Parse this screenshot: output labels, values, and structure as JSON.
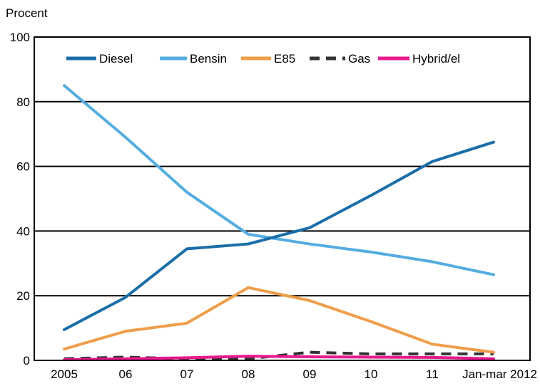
{
  "chart_data": {
    "type": "line",
    "y_unit_label": "Procent",
    "categories": [
      "2005",
      "06",
      "07",
      "08",
      "09",
      "10",
      "11",
      "Jan-mar 2012"
    ],
    "ylim": [
      0,
      100
    ],
    "y_ticks": [
      0,
      20,
      40,
      60,
      80,
      100
    ],
    "grid": true,
    "legend_position": "top",
    "series": [
      {
        "name": "Diesel",
        "color": "#1a6ea8",
        "dash": "solid",
        "values": [
          9.5,
          19.5,
          34.5,
          36,
          41,
          51,
          61.5,
          67.5
        ]
      },
      {
        "name": "Bensin",
        "color": "#55ade0",
        "dash": "solid",
        "values": [
          85,
          69,
          52,
          39,
          36,
          33.5,
          30.5,
          26.5
        ]
      },
      {
        "name": "E85",
        "color": "#ef9d4a",
        "dash": "solid",
        "values": [
          3.5,
          9,
          11.5,
          22.5,
          18.5,
          12,
          5,
          2.5
        ]
      },
      {
        "name": "Gas",
        "color": "#333333",
        "dash": "dashed",
        "values": [
          0.5,
          1,
          0.5,
          0.5,
          2.5,
          2,
          2,
          2
        ]
      },
      {
        "name": "Hybrid/el",
        "color": "#e8198b",
        "dash": "solid",
        "values": [
          0.2,
          0.5,
          0.8,
          1.3,
          1.1,
          1,
          0.9,
          0.5
        ]
      }
    ]
  }
}
